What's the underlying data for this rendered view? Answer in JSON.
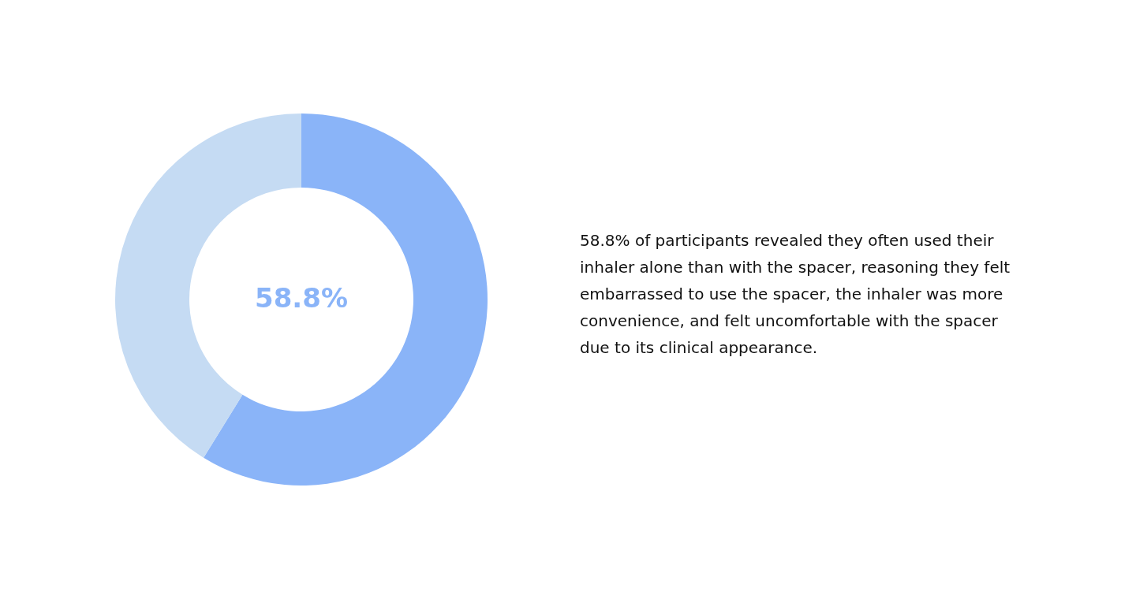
{
  "chart_data": {
    "type": "donut",
    "categories": [
      null,
      null
    ],
    "values": [
      58.8,
      41.2
    ],
    "colors": [
      "#8ab4f8",
      "#c5dbf3"
    ],
    "value_labels": [
      "58.8%",
      null
    ],
    "annotations": [
      "58.8% of participants revealed they often used their\ninhaler alone than with the spacer, reasoning they felt\nembarrassed to use the spacer, the inhaler was more\nconvenience, and felt uncomfortable with the spacer\ndue to its clinical appearance."
    ]
  }
}
